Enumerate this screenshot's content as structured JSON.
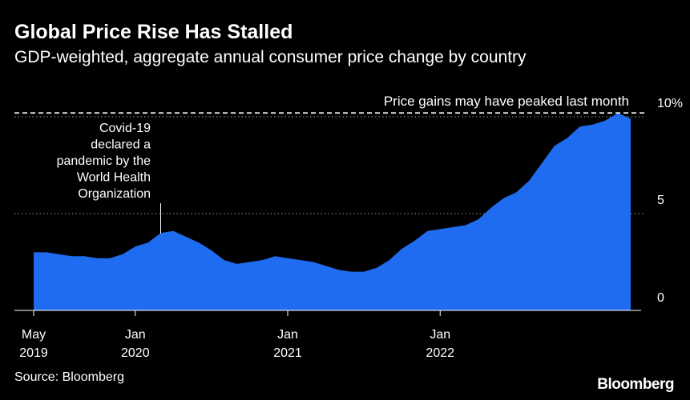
{
  "title": "Global Price Rise Has Stalled",
  "subtitle": "GDP-weighted, aggregate annual consumer price change by country",
  "source": "Source: Bloomberg",
  "brand": "Bloomberg",
  "colors": {
    "background": "#000000",
    "area_fill": "#1f6cf0",
    "text": "#ffffff",
    "gridline": "#9a9a9a"
  },
  "chart_data": {
    "type": "area",
    "title": "Global Price Rise Has Stalled",
    "subtitle": "GDP-weighted, aggregate annual consumer price change by country",
    "ylim": [
      0,
      10
    ],
    "y_ticks": [
      {
        "value": 0,
        "label": "0"
      },
      {
        "value": 5,
        "label": "5"
      },
      {
        "value": 10,
        "label": "10%"
      }
    ],
    "x_ticks": [
      {
        "date": "2019-05",
        "line1": "May",
        "line2": "2019"
      },
      {
        "date": "2020-01",
        "line1": "Jan",
        "line2": "2020"
      },
      {
        "date": "2021-01",
        "line1": "Jan",
        "line2": "2021"
      },
      {
        "date": "2022-01",
        "line1": "Jan",
        "line2": "2022"
      }
    ],
    "grid": "dotted horizontal at 5 and 10",
    "series": [
      {
        "values": [
          [
            "2019-05",
            3.0
          ],
          [
            "2019-06",
            3.0
          ],
          [
            "2019-07",
            2.9
          ],
          [
            "2019-08",
            2.8
          ],
          [
            "2019-09",
            2.8
          ],
          [
            "2019-10",
            2.7
          ],
          [
            "2019-11",
            2.7
          ],
          [
            "2019-12",
            2.9
          ],
          [
            "2020-01",
            3.3
          ],
          [
            "2020-02",
            3.5
          ],
          [
            "2020-03",
            4.0
          ],
          [
            "2020-04",
            4.1
          ],
          [
            "2020-05",
            3.8
          ],
          [
            "2020-06",
            3.5
          ],
          [
            "2020-07",
            3.1
          ],
          [
            "2020-08",
            2.6
          ],
          [
            "2020-09",
            2.4
          ],
          [
            "2020-10",
            2.5
          ],
          [
            "2020-11",
            2.6
          ],
          [
            "2020-12",
            2.8
          ],
          [
            "2021-01",
            2.7
          ],
          [
            "2021-02",
            2.6
          ],
          [
            "2021-03",
            2.5
          ],
          [
            "2021-04",
            2.3
          ],
          [
            "2021-05",
            2.1
          ],
          [
            "2021-06",
            2.0
          ],
          [
            "2021-07",
            2.0
          ],
          [
            "2021-08",
            2.2
          ],
          [
            "2021-09",
            2.6
          ],
          [
            "2021-10",
            3.2
          ],
          [
            "2021-11",
            3.6
          ],
          [
            "2021-12",
            4.1
          ],
          [
            "2022-01",
            4.2
          ],
          [
            "2022-02",
            4.3
          ],
          [
            "2022-03",
            4.4
          ],
          [
            "2022-04",
            4.7
          ],
          [
            "2022-05",
            5.3
          ],
          [
            "2022-06",
            5.8
          ],
          [
            "2022-07",
            6.1
          ],
          [
            "2022-08",
            6.7
          ],
          [
            "2022-09",
            7.6
          ],
          [
            "2022-10",
            8.5
          ],
          [
            "2022-11",
            8.9
          ],
          [
            "2022-12",
            9.5
          ],
          [
            "2023-01",
            9.6
          ],
          [
            "2023-02",
            9.8
          ],
          [
            "2023-03",
            10.2
          ],
          [
            "2023-04",
            9.9
          ]
        ]
      }
    ],
    "annotations": [
      {
        "id": "covid",
        "date": "2020-03",
        "lines": [
          "Covid-19",
          "declared a",
          "pandemic by the",
          "World Health",
          "Organization"
        ]
      },
      {
        "id": "peak",
        "value": 10.2,
        "text": "Price gains may have peaked last month"
      }
    ]
  }
}
